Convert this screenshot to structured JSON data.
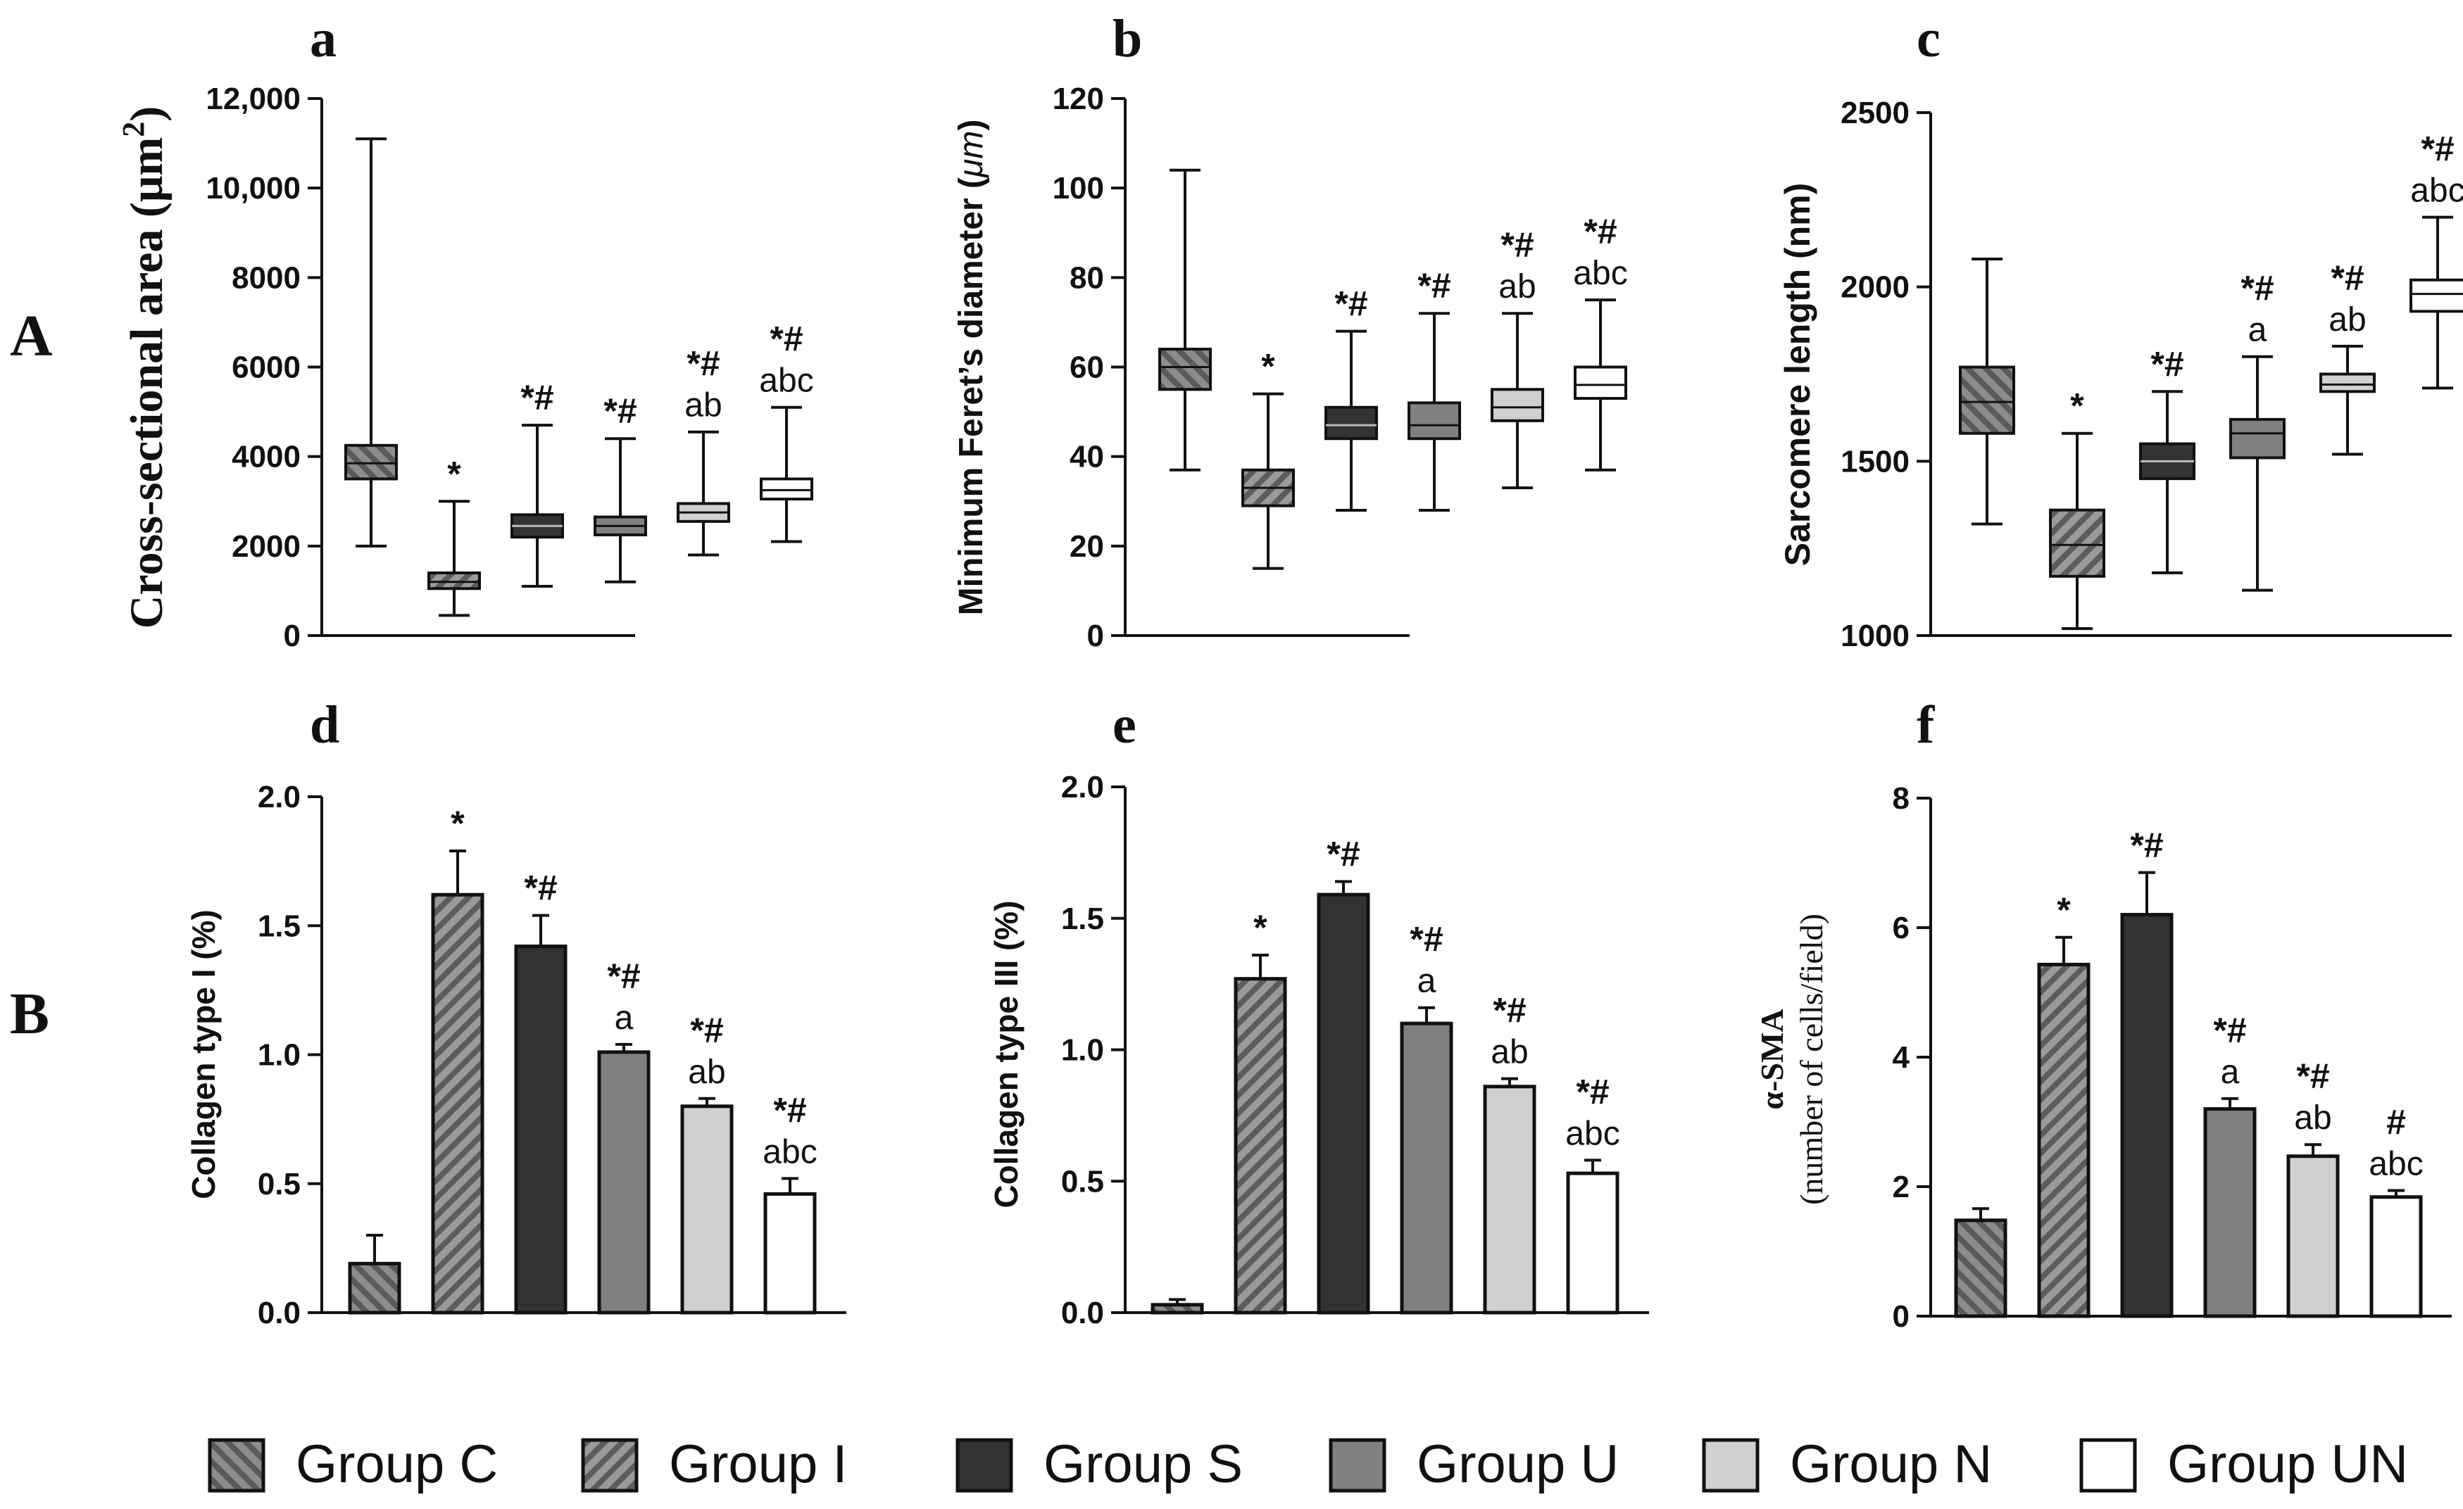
{
  "section_labels": [
    "A",
    "B"
  ],
  "legend": {
    "items": [
      {
        "label": "Group C",
        "fill": "#7a7a7a",
        "pattern": "hatch-fwd",
        "stroke": "#111111"
      },
      {
        "label": "Group I",
        "fill": "#8a8a8a",
        "pattern": "hatch-back",
        "stroke": "#111111"
      },
      {
        "label": "Group S",
        "fill": "#333333",
        "pattern": "none",
        "stroke": "#111111"
      },
      {
        "label": "Group U",
        "fill": "#808080",
        "pattern": "none",
        "stroke": "#111111"
      },
      {
        "label": "Group N",
        "fill": "#d0d0d0",
        "pattern": "none",
        "stroke": "#111111"
      },
      {
        "label": "Group UN",
        "fill": "#ffffff",
        "pattern": "none",
        "stroke": "#111111"
      }
    ]
  },
  "chart_data": [
    {
      "panel": "a",
      "type": "box",
      "ylabel": "Cross-sectional area (μm²)",
      "ylabel_text": "Cross-sectional area (μm",
      "ylabel_sup": "2",
      "ylabel_close": ")",
      "ylim": [
        0,
        12000
      ],
      "yticks": [
        0,
        2000,
        4000,
        6000,
        8000,
        10000,
        12000
      ],
      "ytick_labels": [
        "0",
        "2000",
        "4000",
        "6000",
        "8000",
        "10,000",
        "12,000"
      ],
      "groups": [
        "Group C",
        "Group I",
        "Group S",
        "Group U",
        "Group N",
        "Group UN"
      ],
      "boxes": [
        {
          "min": 2000,
          "q1": 3500,
          "median": 3850,
          "q3": 4250,
          "max": 11100
        },
        {
          "min": 450,
          "q1": 1050,
          "median": 1200,
          "q3": 1400,
          "max": 3000
        },
        {
          "min": 1100,
          "q1": 2200,
          "median": 2450,
          "q3": 2700,
          "max": 4700
        },
        {
          "min": 1200,
          "q1": 2250,
          "median": 2450,
          "q3": 2650,
          "max": 4400
        },
        {
          "min": 1800,
          "q1": 2550,
          "median": 2750,
          "q3": 2950,
          "max": 4550
        },
        {
          "min": 2100,
          "q1": 3050,
          "median": 3250,
          "q3": 3500,
          "max": 5100
        }
      ],
      "annotations": [
        [],
        [
          "*"
        ],
        [
          "*#"
        ],
        [
          "*#"
        ],
        [
          "*#",
          "ab"
        ],
        [
          "*#",
          "abc"
        ]
      ]
    },
    {
      "panel": "b",
      "type": "box",
      "ylabel": "Minimum Feret's diameter (μm)",
      "ylabel_text": "Minimum Feret’s diameter (",
      "ylabel_unit": "μm",
      "ylabel_close": ")",
      "ylim": [
        0,
        120
      ],
      "yticks": [
        0,
        20,
        40,
        60,
        80,
        100,
        120
      ],
      "ytick_labels": [
        "0",
        "20",
        "40",
        "60",
        "80",
        "100",
        "120"
      ],
      "groups": [
        "Group C",
        "Group I",
        "Group S",
        "Group U",
        "Group N",
        "Group UN"
      ],
      "boxes": [
        {
          "min": 37,
          "q1": 55,
          "median": 60,
          "q3": 64,
          "max": 104
        },
        {
          "min": 15,
          "q1": 29,
          "median": 33,
          "q3": 37,
          "max": 54
        },
        {
          "min": 28,
          "q1": 44,
          "median": 47,
          "q3": 51,
          "max": 68
        },
        {
          "min": 28,
          "q1": 44,
          "median": 47,
          "q3": 52,
          "max": 72
        },
        {
          "min": 33,
          "q1": 48,
          "median": 51,
          "q3": 55,
          "max": 72
        },
        {
          "min": 37,
          "q1": 53,
          "median": 56,
          "q3": 60,
          "max": 75
        }
      ],
      "annotations": [
        [],
        [
          "*"
        ],
        [
          "*#"
        ],
        [
          "*#"
        ],
        [
          "*#",
          "ab"
        ],
        [
          "*#",
          "abc"
        ]
      ]
    },
    {
      "panel": "c",
      "type": "box",
      "ylabel": "Sarcomere length (nm)",
      "ylim": [
        1000,
        2500
      ],
      "yticks": [
        1000,
        1500,
        2000,
        2500
      ],
      "ytick_labels": [
        "1000",
        "1500",
        "2000",
        "2500"
      ],
      "groups": [
        "Group C",
        "Group I",
        "Group S",
        "Group U",
        "Group N",
        "Group UN"
      ],
      "boxes": [
        {
          "min": 1320,
          "q1": 1580,
          "median": 1670,
          "q3": 1770,
          "max": 2080
        },
        {
          "min": 1020,
          "q1": 1170,
          "median": 1260,
          "q3": 1360,
          "max": 1580
        },
        {
          "min": 1180,
          "q1": 1450,
          "median": 1500,
          "q3": 1550,
          "max": 1700
        },
        {
          "min": 1130,
          "q1": 1510,
          "median": 1580,
          "q3": 1620,
          "max": 1800
        },
        {
          "min": 1520,
          "q1": 1700,
          "median": 1720,
          "q3": 1750,
          "max": 1830
        },
        {
          "min": 1710,
          "q1": 1930,
          "median": 1980,
          "q3": 2020,
          "max": 2200
        }
      ],
      "annotations": [
        [],
        [
          "*"
        ],
        [
          "*#"
        ],
        [
          "*#",
          "a"
        ],
        [
          "*#",
          "ab"
        ],
        [
          "*#",
          "abc"
        ]
      ]
    },
    {
      "panel": "d",
      "type": "bar",
      "ylabel": "Collagen type I (%)",
      "ylim": [
        0,
        2.0
      ],
      "yticks": [
        0,
        0.5,
        1.0,
        1.5,
        2.0
      ],
      "ytick_labels": [
        "0.0",
        "0.5",
        "1.0",
        "1.5",
        "2.0"
      ],
      "groups": [
        "Group C",
        "Group I",
        "Group S",
        "Group U",
        "Group N",
        "Group UN"
      ],
      "values": [
        0.19,
        1.62,
        1.42,
        1.01,
        0.8,
        0.46
      ],
      "errors": [
        0.11,
        0.17,
        0.12,
        0.03,
        0.03,
        0.06
      ],
      "annotations": [
        [],
        [
          "*"
        ],
        [
          "*#"
        ],
        [
          "*#",
          "a"
        ],
        [
          "*#",
          "ab"
        ],
        [
          "*#",
          "abc"
        ]
      ]
    },
    {
      "panel": "e",
      "type": "bar",
      "ylabel": "Collagen type III (%)",
      "ylim": [
        0,
        2.0
      ],
      "yticks": [
        0,
        0.5,
        1.0,
        1.5,
        2.0
      ],
      "ytick_labels": [
        "0.0",
        "0.5",
        "1.0",
        "1.5",
        "2.0"
      ],
      "groups": [
        "Group C",
        "Group I",
        "Group S",
        "Group U",
        "Group N",
        "Group UN"
      ],
      "values": [
        0.03,
        1.27,
        1.59,
        1.1,
        0.86,
        0.53
      ],
      "errors": [
        0.02,
        0.09,
        0.05,
        0.06,
        0.03,
        0.05
      ],
      "annotations": [
        [],
        [
          "*"
        ],
        [
          "*#"
        ],
        [
          "*#",
          "a"
        ],
        [
          "*#",
          "ab"
        ],
        [
          "*#",
          "abc"
        ]
      ]
    },
    {
      "panel": "f",
      "type": "bar",
      "ylabel": "α-SMA (number of cells/field)",
      "ylabel_line1": "α-SMA",
      "ylabel_line2": "(number of cells/field)",
      "ylim": [
        0,
        8
      ],
      "yticks": [
        0,
        2,
        4,
        6,
        8
      ],
      "ytick_labels": [
        "0",
        "2",
        "4",
        "6",
        "8"
      ],
      "groups": [
        "Group C",
        "Group I",
        "Group S",
        "Group U",
        "Group N",
        "Group UN"
      ],
      "values": [
        1.48,
        5.43,
        6.2,
        3.2,
        2.47,
        1.84
      ],
      "errors": [
        0.18,
        0.42,
        0.65,
        0.16,
        0.18,
        0.1
      ],
      "annotations": [
        [],
        [
          "*"
        ],
        [
          "*#"
        ],
        [
          "*#",
          "a"
        ],
        [
          "*#",
          "ab"
        ],
        [
          "#",
          "abc"
        ]
      ]
    }
  ]
}
